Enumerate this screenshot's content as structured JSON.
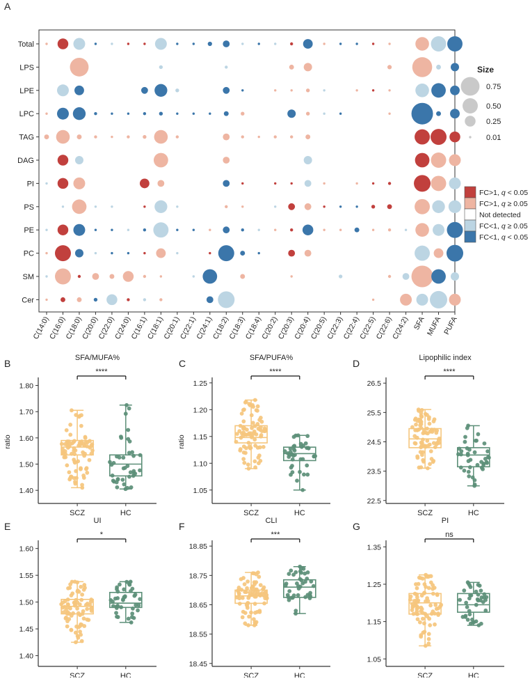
{
  "panel_a": {
    "label": "A",
    "size_legend": {
      "title": "Size",
      "items": [
        "0.75",
        "0.50",
        "0.25",
        "0.01"
      ]
    },
    "color_legend": [
      {
        "key": "DR",
        "prefix": "FC>1, ",
        "q": "q",
        "suffix": " < 0.05",
        "color": "#c1403d"
      },
      {
        "key": "LR",
        "prefix": "FC>1, ",
        "q": "q",
        "suffix": " ≥ 0.05",
        "color": "#eeb5a2"
      },
      {
        "key": "ND",
        "prefix": "Not detected",
        "q": "",
        "suffix": "",
        "color": "#ffffff"
      },
      {
        "key": "LB",
        "prefix": "FC<1, ",
        "q": "q",
        "suffix": " ≥ 0.05",
        "color": "#bcd5e3"
      },
      {
        "key": "DB",
        "prefix": "FC<1, ",
        "q": "q",
        "suffix": " < 0.05",
        "color": "#3b76aa"
      }
    ]
  },
  "chart_data": [
    {
      "type": "scatter",
      "subtype": "bubble-matrix",
      "panel": "A",
      "rows": [
        "Total",
        "LPS",
        "LPE",
        "LPC",
        "TAG",
        "DAG",
        "PI",
        "PS",
        "PE",
        "PC",
        "SM",
        "Cer"
      ],
      "columns": [
        "C(14:0)",
        "C(16:0)",
        "C(18:0)",
        "C(20:0)",
        "C(22:0)",
        "C(24:0)",
        "C(16:1)",
        "C(18:1)",
        "C(20:1)",
        "C(22:1)",
        "C(24:1)",
        "C(18:2)",
        "C(18:3)",
        "C(18:4)",
        "C(20:2)",
        "C(20:3)",
        "C(20:4)",
        "C(20:5)",
        "C(22:3)",
        "C(22:4)",
        "C(22:5)",
        "C(22:6)",
        "C(24:2)",
        "SFA",
        "MUFA",
        "PUFA"
      ],
      "color_codes": {
        "DR": "FC>1, q < 0.05",
        "LR": "FC>1, q ≥ 0.05",
        "LB": "FC<1, q ≥ 0.05",
        "DB": "FC<1, q < 0.05"
      },
      "cells": [
        [
          "LR:0.01",
          "DR:0.25",
          "LB:0.3",
          "DB:0.01",
          "LB:0.01",
          "DR:0.01",
          "DR:0.01",
          "LB:0.3",
          "DB:0.01",
          "DB:0.01",
          "DB:0.04",
          "DB:0.1",
          "LB:0.01",
          "DB:0.01",
          "LB:0.01",
          "DR:0.02",
          "DB:0.2",
          "LR:0.01",
          "DB:0.01",
          "DB:0.01",
          "DR:0.01",
          "LR:0.01",
          "",
          "LR:0.4",
          "LB:0.5",
          "DB:0.5"
        ],
        [
          "",
          "",
          "LR:0.75",
          "",
          "",
          "",
          "",
          "LB:0.03",
          "",
          "",
          "",
          "LB:0.02",
          "",
          "",
          "",
          "LR:0.05",
          "LR:0.15",
          "",
          "",
          "",
          "",
          "LR:0.04",
          "",
          "LR:0.85",
          "LB:0.05",
          "DB:0.15"
        ],
        [
          "",
          "LB:0.3",
          "DB:0.2",
          "",
          "",
          "",
          "DB:0.1",
          "DB:0.35",
          "LB:0.03",
          "",
          "",
          "DB:0.1",
          "DB:0.01",
          "",
          "LR:0.01",
          "LR:0.01",
          "LR:0.03",
          "LB:0.01",
          "",
          "LR:0.01",
          "DR:0.01",
          "LR:0.01",
          "",
          "LB:0.4",
          "DB:0.45",
          "DB:0.2"
        ],
        [
          "LR:0.01",
          "DB:0.3",
          "DB:0.35",
          "DB:0.02",
          "DB:0.01",
          "DB:0.01",
          "DB:0.02",
          "DB:0.03",
          "DB:0.01",
          "DB:0.01",
          "DB:0.01",
          "DB:0.05",
          "LR:0.03",
          "",
          "",
          "DB:0.15",
          "LR:0.03",
          "LB:0.01",
          "DB:0.01",
          "",
          "",
          "LR:0.01",
          "",
          "DB:1.0",
          "DB:0.05",
          "DB:0.2"
        ],
        [
          "LR:0.05",
          "LR:0.4",
          "LR:0.05",
          "LR:0.02",
          "LR:0.01",
          "LR:0.02",
          "LR:0.03",
          "LR:0.4",
          "LR:0.02",
          "",
          "",
          "LR:0.1",
          "LR:0.02",
          "LR:0.01",
          "LR:0.02",
          "LR:0.02",
          "LR:0.05",
          "",
          "",
          "",
          "",
          "",
          "",
          "DR:0.5",
          "DR:0.55",
          "DR:0.25"
        ],
        [
          "",
          "DR:0.25",
          "LB:0.15",
          "",
          "",
          "",
          "",
          "LR:0.45",
          "",
          "",
          "",
          "LR:0.1",
          "",
          "",
          "",
          "",
          "LB:0.15",
          "",
          "",
          "",
          "",
          "",
          "",
          "DR:0.45",
          "LR:0.5",
          "LR:0.3"
        ],
        [
          "LB:0.01",
          "DR:0.25",
          "LR:0.3",
          "",
          "",
          "",
          "DR:0.2",
          "LR:0.1",
          "",
          "",
          "",
          "DB:0.1",
          "DR:0.01",
          "",
          "DR:0.01",
          "DR:0.01",
          "LB:0.1",
          "LR:0.01",
          "",
          "LR:0.01",
          "DR:0.01",
          "DR:0.02",
          "",
          "DR:0.6",
          "LR:0.5",
          "LB:0.3"
        ],
        [
          "",
          "LB:0.01",
          "LR:0.45",
          "LB:0.01",
          "LB:0.01",
          "",
          "DR:0.01",
          "LB:0.35",
          "LB:0.01",
          "",
          "",
          "LR:0.02",
          "LR:0.01",
          "",
          "LB:0.01",
          "DR:0.1",
          "LR:0.1",
          "DR:0.01",
          "DB:0.01",
          "DB:0.01",
          "DR:0.03",
          "DR:0.05",
          "",
          "LR:0.5",
          "LB:0.35",
          "LB:0.35"
        ],
        [
          "LB:0.01",
          "DR:0.25",
          "DB:0.3",
          "DB:0.01",
          "DB:0.01",
          "LB:0.01",
          "DB:0.02",
          "LB:0.5",
          "DB:0.01",
          "DB:0.01",
          "LR:0.01",
          "DB:0.1",
          "DB:0.02",
          "LB:0.01",
          "LR:0.01",
          "DR:0.02",
          "DB:0.25",
          "LR:0.01",
          "LR:0.01",
          "DB:0.05",
          "LR:0.01",
          "LR:0.02",
          "LB:0.01",
          "LR:0.4",
          "LB:0.3",
          "DB:0.55"
        ],
        [
          "LR:0.01",
          "DR:0.55",
          "DB:0.15",
          "LB:0.01",
          "DB:0.01",
          "DB:0.01",
          "DR:0.01",
          "LR:0.2",
          "LB:0.01",
          "",
          "DR:0.01",
          "DB:0.55",
          "DB:0.05",
          "DB:0.01",
          "",
          "DR:0.1",
          "LR:0.1",
          "",
          "",
          "",
          "",
          "",
          "",
          "LB:0.5",
          "LR:0.2",
          "DB:0.6"
        ],
        [
          "LB:0.01",
          "LR:0.55",
          "DR:0.02",
          "LR:0.1",
          "LR:0.05",
          "LR:0.25",
          "LR:0.02",
          "LR:0.01",
          "",
          "LB:0.01",
          "DB:0.45",
          "",
          "LR:0.05",
          "",
          "",
          "LR:0.01",
          "",
          "",
          "LB:0.03",
          "",
          "",
          "LR:0.02",
          "LB:0.1",
          "LR:1.0",
          "DB:0.45",
          "LB:0.15"
        ],
        [
          "LR:0.01",
          "DR:0.05",
          "LR:0.05",
          "DB:0.03",
          "LB:0.25",
          "DR:0.02",
          "LB:0.02",
          "LR:0.02",
          "",
          "",
          "DB:0.1",
          "LB:0.6",
          "",
          "",
          "",
          "",
          "",
          "",
          "",
          "",
          "LR:0.01",
          "",
          "LR:0.3",
          "LB:0.3",
          "LB:0.65",
          "LR:0.3"
        ]
      ]
    },
    {
      "type": "box",
      "panel": "B",
      "title": "SFA/MUFA%",
      "ylabel": "ratio",
      "ylim": [
        1.35,
        1.82
      ],
      "yticks": [
        "1.80",
        "1.70",
        "1.60",
        "1.50",
        "1.40"
      ],
      "categories": [
        "SCZ",
        "HC"
      ],
      "significance": "****",
      "series": [
        {
          "name": "SCZ",
          "color": "#f5c67d",
          "n": 80,
          "min": 1.41,
          "q1": 1.535,
          "median": 1.565,
          "q3": 1.59,
          "max": 1.705
        },
        {
          "name": "HC",
          "color": "#5c8f78",
          "n": 40,
          "min": 1.405,
          "q1": 1.455,
          "median": 1.5,
          "q3": 1.535,
          "max": 1.725
        }
      ]
    },
    {
      "type": "box",
      "panel": "C",
      "title": "SFA/PUFA%",
      "ylabel": "ratio",
      "ylim": [
        1.025,
        1.255
      ],
      "yticks": [
        "1.25",
        "1.20",
        "1.15",
        "1.10",
        "1.05"
      ],
      "categories": [
        "SCZ",
        "HC"
      ],
      "significance": "****",
      "series": [
        {
          "name": "SCZ",
          "color": "#f5c67d",
          "n": 80,
          "min": 1.09,
          "q1": 1.138,
          "median": 1.148,
          "q3": 1.17,
          "max": 1.218
        },
        {
          "name": "HC",
          "color": "#5c8f78",
          "n": 40,
          "min": 1.05,
          "q1": 1.105,
          "median": 1.118,
          "q3": 1.13,
          "max": 1.152
        }
      ]
    },
    {
      "type": "box",
      "panel": "D",
      "title": "Lipophilic index",
      "ylabel": "",
      "ylim": [
        22.4,
        26.6
      ],
      "yticks": [
        "26.5",
        "25.5",
        "24.5",
        "23.5",
        "22.5"
      ],
      "categories": [
        "SCZ",
        "HC"
      ],
      "significance": "****",
      "series": [
        {
          "name": "SCZ",
          "color": "#f5c67d",
          "n": 80,
          "min": 23.6,
          "q1": 24.3,
          "median": 24.6,
          "q3": 24.95,
          "max": 25.6
        },
        {
          "name": "HC",
          "color": "#5c8f78",
          "n": 40,
          "min": 23.0,
          "q1": 23.65,
          "median": 24.05,
          "q3": 24.3,
          "max": 25.05
        }
      ]
    },
    {
      "type": "box",
      "panel": "E",
      "title": "UI",
      "ylabel": "",
      "ylim": [
        1.38,
        1.61
      ],
      "yticks": [
        "1.60",
        "1.55",
        "1.50",
        "1.45",
        "1.40"
      ],
      "categories": [
        "SCZ",
        "HC"
      ],
      "significance": "*",
      "series": [
        {
          "name": "SCZ",
          "color": "#f5c67d",
          "n": 80,
          "min": 1.425,
          "q1": 1.478,
          "median": 1.492,
          "q3": 1.505,
          "max": 1.538
        },
        {
          "name": "HC",
          "color": "#5c8f78",
          "n": 40,
          "min": 1.462,
          "q1": 1.49,
          "median": 1.498,
          "q3": 1.518,
          "max": 1.538
        }
      ]
    },
    {
      "type": "box",
      "panel": "F",
      "title": "CLI",
      "ylabel": "",
      "ylim": [
        18.44,
        18.86
      ],
      "yticks": [
        "18.85",
        "18.75",
        "18.65",
        "18.55",
        "18.45"
      ],
      "categories": [
        "SCZ",
        "HC"
      ],
      "significance": "***",
      "series": [
        {
          "name": "SCZ",
          "color": "#f5c67d",
          "n": 80,
          "min": 18.58,
          "q1": 18.655,
          "median": 18.68,
          "q3": 18.7,
          "max": 18.76
        },
        {
          "name": "HC",
          "color": "#5c8f78",
          "n": 40,
          "min": 18.62,
          "q1": 18.675,
          "median": 18.71,
          "q3": 18.735,
          "max": 18.78
        }
      ]
    },
    {
      "type": "box",
      "panel": "G",
      "title": "PI",
      "ylabel": "",
      "ylim": [
        1.03,
        1.36
      ],
      "yticks": [
        "1.35",
        "1.25",
        "1.15",
        "1.05"
      ],
      "categories": [
        "SCZ",
        "HC"
      ],
      "significance": "ns",
      "series": [
        {
          "name": "SCZ",
          "color": "#f5c67d",
          "n": 80,
          "min": 1.085,
          "q1": 1.17,
          "median": 1.2,
          "q3": 1.225,
          "max": 1.275
        },
        {
          "name": "HC",
          "color": "#5c8f78",
          "n": 40,
          "min": 1.14,
          "q1": 1.175,
          "median": 1.195,
          "q3": 1.225,
          "max": 1.255
        }
      ]
    }
  ]
}
